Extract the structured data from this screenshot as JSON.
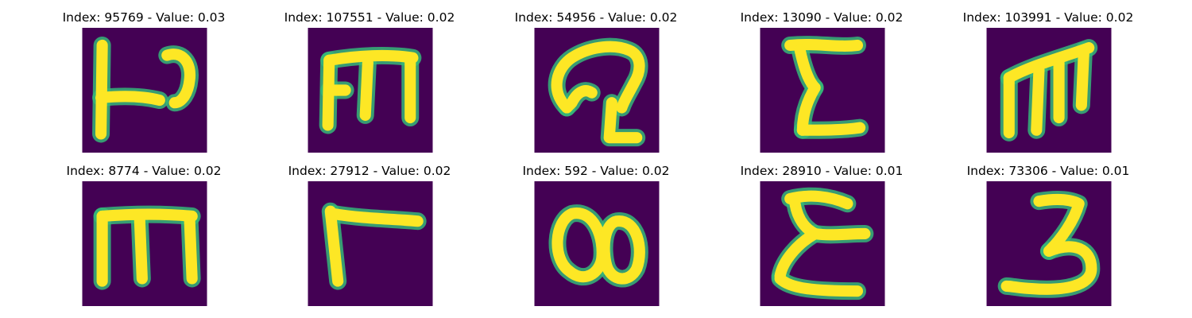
{
  "colors": {
    "background": "#440154",
    "stroke": "#fde725",
    "edge": "#35b779"
  },
  "tiles": [
    {
      "caption": "Index: 95769 - Value: 0.03",
      "glyph": "glyph-p-with-bar"
    },
    {
      "caption": "Index: 107551 - Value: 0.02",
      "glyph": "glyph-m-shape"
    },
    {
      "caption": "Index: 54956 - Value: 0.02",
      "glyph": "glyph-curl-shape"
    },
    {
      "caption": "Index: 13090 - Value: 0.02",
      "glyph": "glyph-e-shape"
    },
    {
      "caption": "Index: 103991 - Value: 0.02",
      "glyph": "glyph-m-shape"
    },
    {
      "caption": "Index: 8774 - Value: 0.02",
      "glyph": "glyph-m-shape"
    },
    {
      "caption": "Index: 27912 - Value: 0.02",
      "glyph": "glyph-l-shape"
    },
    {
      "caption": "Index: 592 - Value: 0.02",
      "glyph": "glyph-blob-shape"
    },
    {
      "caption": "Index: 28910 - Value: 0.01",
      "glyph": "glyph-epsilon-shape"
    },
    {
      "caption": "Index: 73306 - Value: 0.01",
      "glyph": "glyph-three-shape"
    }
  ]
}
